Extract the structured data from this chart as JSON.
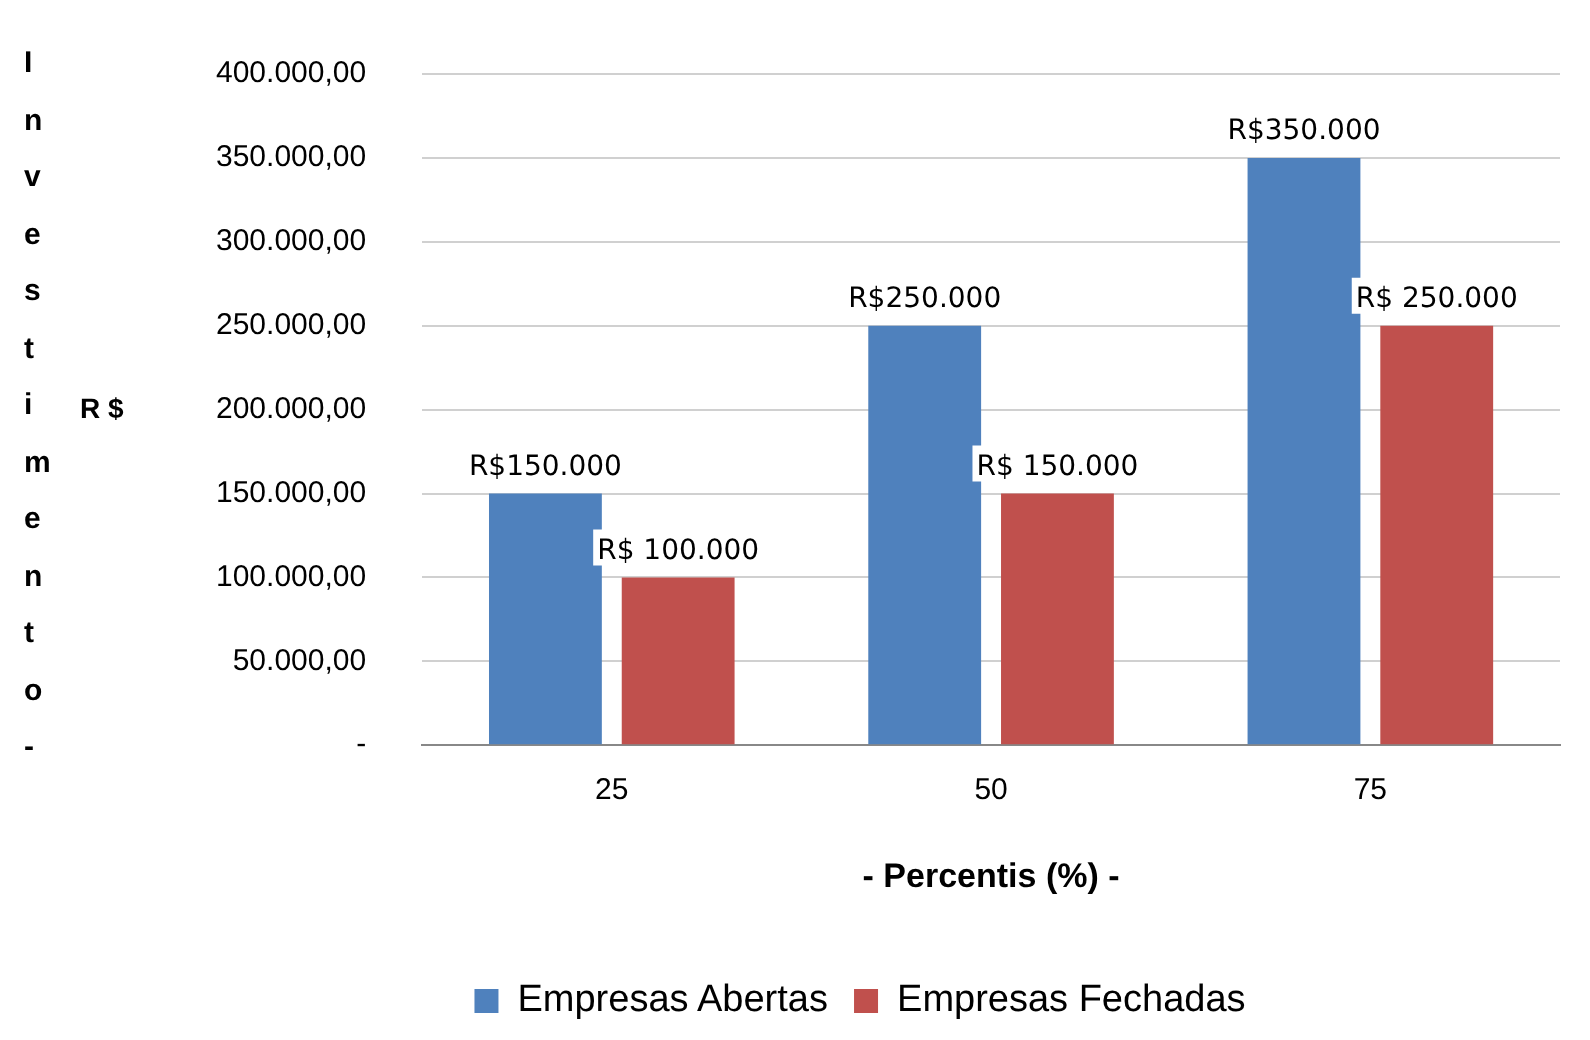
{
  "chart_data": {
    "type": "bar",
    "ylabel": "Investimento -",
    "xlabel": "- Percentis (%) -",
    "annotations": [
      "R $"
    ],
    "categories": [
      "25",
      "50",
      "75"
    ],
    "series": [
      {
        "name": "Empresas Abertas",
        "color": "#4f81bd",
        "values": [
          150000,
          250000,
          350000
        ],
        "value_labels": [
          "R$150.000",
          "R$250.000",
          "R$350.000"
        ]
      },
      {
        "name": "Empresas Fechadas",
        "color": "#c0504d",
        "values": [
          100000,
          150000,
          250000
        ],
        "value_labels": [
          "R$ 100.000",
          "R$ 150.000",
          "R$ 250.000"
        ]
      }
    ],
    "ylim": [
      0,
      400000
    ],
    "yticks": [
      {
        "value": 0,
        "label": "-"
      },
      {
        "value": 50000,
        "label": "50.000,00"
      },
      {
        "value": 100000,
        "label": "100.000,00"
      },
      {
        "value": 150000,
        "label": "150.000,00"
      },
      {
        "value": 200000,
        "label": "200.000,00"
      },
      {
        "value": 250000,
        "label": "250.000,00"
      },
      {
        "value": 300000,
        "label": "300.000,00"
      },
      {
        "value": 350000,
        "label": "350.000,00"
      },
      {
        "value": 400000,
        "label": "400.000,00"
      }
    ],
    "grid": "y",
    "legend": "bottom"
  }
}
